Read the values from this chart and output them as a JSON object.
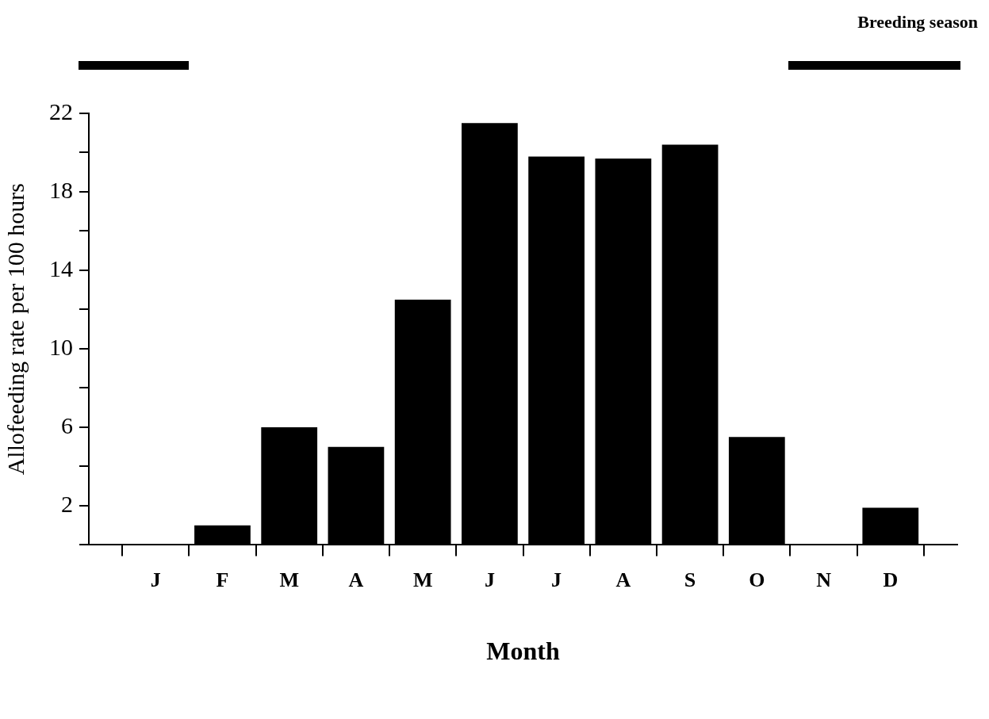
{
  "chart_data": {
    "type": "bar",
    "xlabel": "Month",
    "ylabel": "Allofeeding rate per 100 hours",
    "categories": [
      "J",
      "F",
      "M",
      "A",
      "M",
      "J",
      "J",
      "A",
      "S",
      "O",
      "N",
      "D"
    ],
    "values": [
      0,
      1.0,
      6.0,
      5.0,
      12.5,
      21.5,
      19.8,
      19.7,
      20.4,
      5.5,
      0,
      1.9
    ],
    "color": "#000000",
    "ylim": [
      0,
      22
    ],
    "yticks": [
      {
        "value": 0,
        "label": null
      },
      2,
      {
        "value": 4,
        "label": null
      },
      6,
      {
        "value": 8,
        "label": null
      },
      10,
      {
        "value": 12,
        "label": null
      },
      14,
      {
        "value": 16,
        "label": null
      },
      18,
      {
        "value": 20,
        "label": null
      },
      22
    ],
    "annotations": [
      "Breeding season"
    ],
    "grid": false,
    "legend": false
  }
}
